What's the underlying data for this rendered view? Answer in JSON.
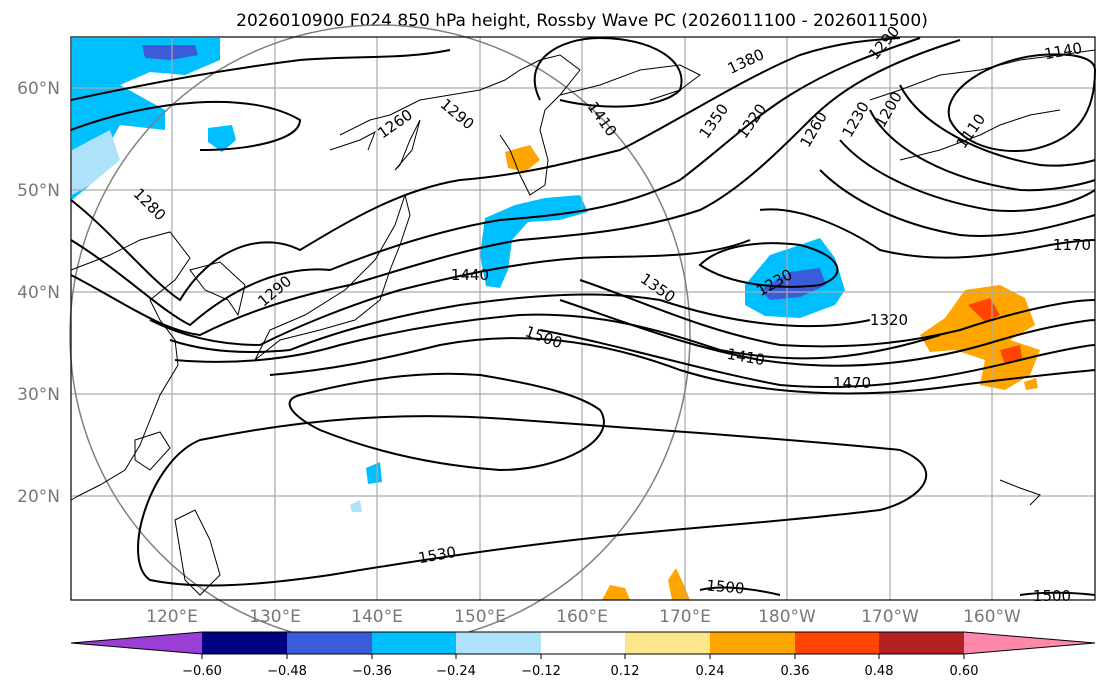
{
  "title": "2026010900 F024 850 hPa height, Rossby Wave PC (2026011100 - 2026011500)",
  "lat_labels": [
    "60°N",
    "50°N",
    "40°N",
    "30°N",
    "20°N"
  ],
  "lon_labels": [
    "120°E",
    "130°E",
    "140°E",
    "150°E",
    "160°E",
    "170°E",
    "180°W",
    "170°W",
    "160°W"
  ],
  "contour_labels": [
    "1380",
    "1410",
    "1290",
    "1140",
    "1350",
    "1320",
    "1260",
    "1230",
    "1200",
    "1110",
    "1260",
    "1290",
    "1280",
    "1170",
    "1440",
    "1230",
    "1350",
    "1320",
    "1290",
    "1500",
    "1410",
    "1470",
    "1530",
    "1500",
    "1500"
  ],
  "colorbar": {
    "tick_labels": [
      "−0.60",
      "−0.48",
      "−0.36",
      "−0.24",
      "−0.12",
      "0.12",
      "0.24",
      "0.36",
      "0.48",
      "0.60"
    ],
    "colors": [
      "#9a3fd6",
      "#000080",
      "#3c5bd8",
      "#00bfff",
      "#aee2fa",
      "#ffffff",
      "#fde68a",
      "#ffa500",
      "#ff4500",
      "#b22222",
      "#ff88aa"
    ]
  },
  "palette": {
    "contour": "#000000",
    "coast": "#000000",
    "grid": "#aaaaaa",
    "circle": "#808080"
  }
}
